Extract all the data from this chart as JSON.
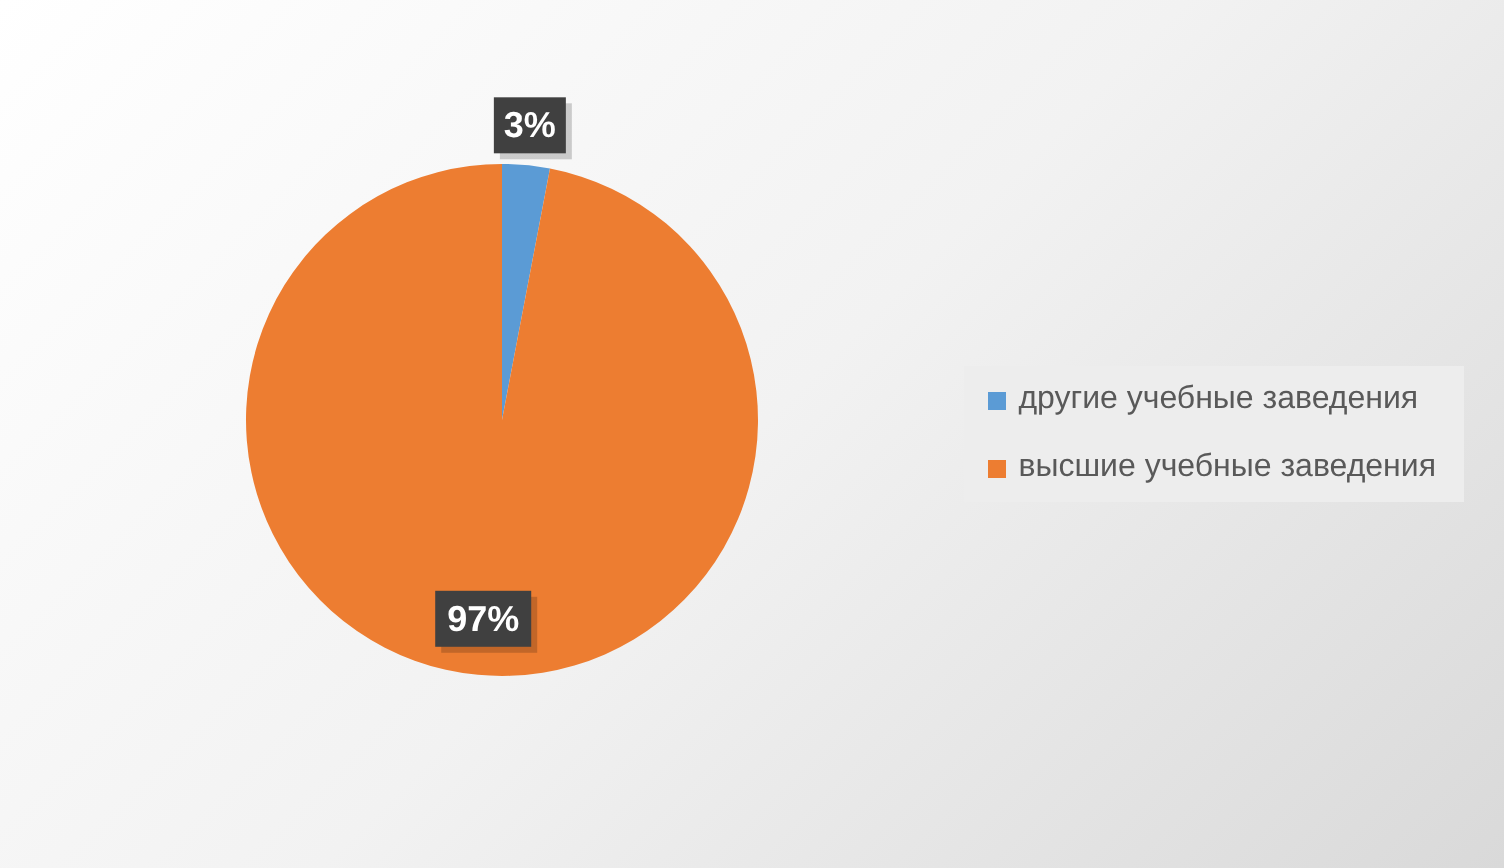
{
  "chart_data": {
    "type": "pie",
    "categories": [
      "другие учебные заведения",
      "высшие учебные заведения"
    ],
    "values": [
      3,
      97
    ],
    "colors": [
      "#5b9bd5",
      "#ed7d31"
    ],
    "value_labels": [
      "3%",
      "97%"
    ],
    "legend": "right"
  }
}
